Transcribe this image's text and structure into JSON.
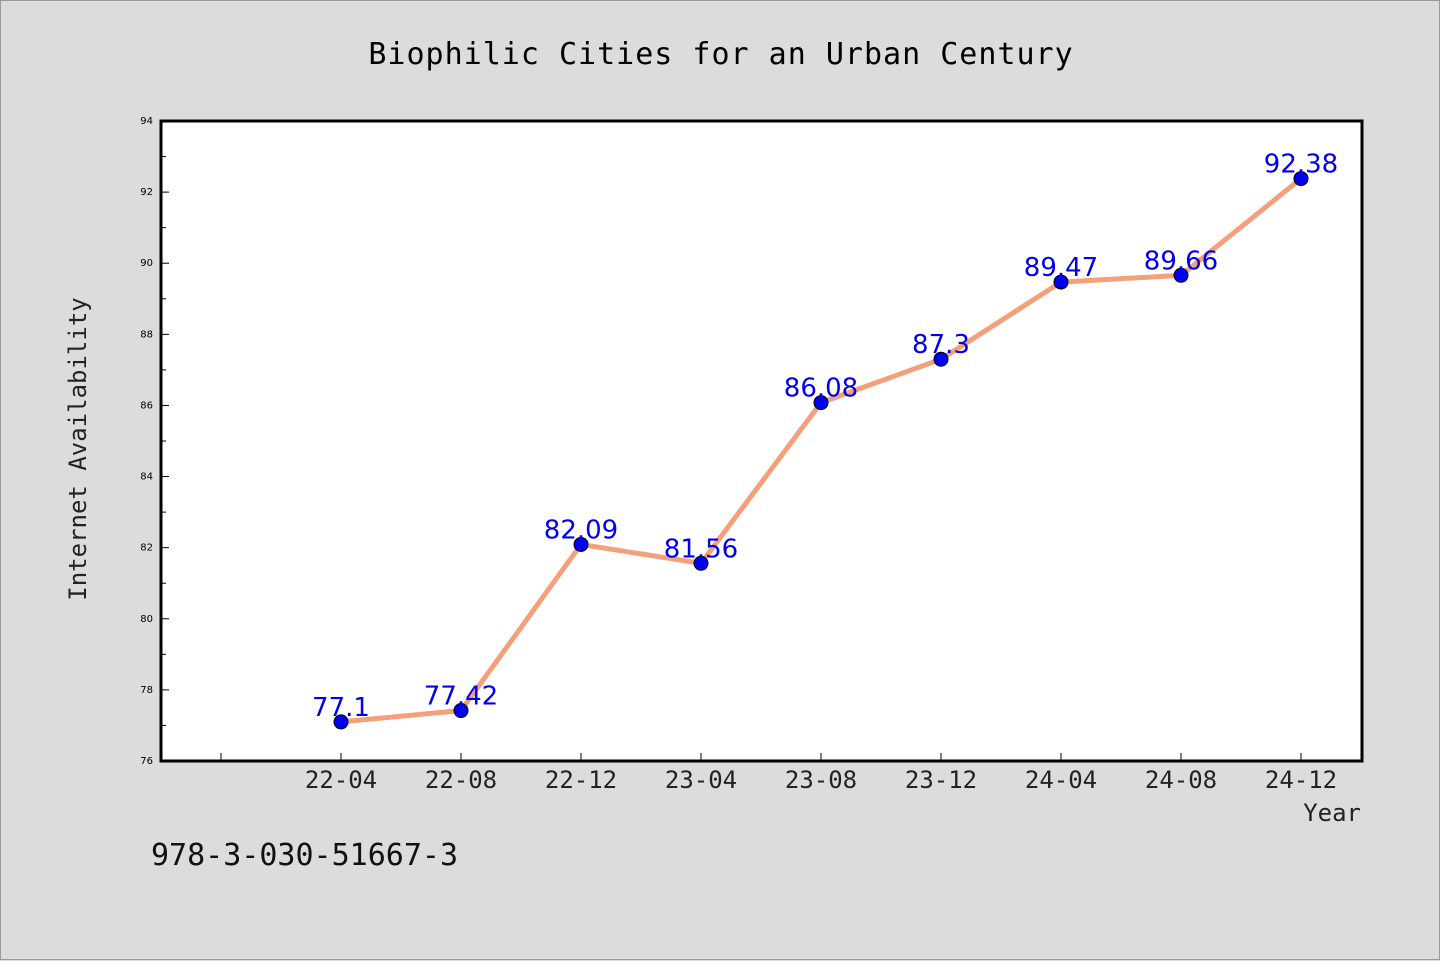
{
  "chart_data": {
    "type": "line",
    "title": "Biophilic Cities for an Urban Century",
    "xlabel": "Year",
    "ylabel": "Internet Availability",
    "categories": [
      "22-04",
      "22-08",
      "22-12",
      "23-04",
      "23-08",
      "23-12",
      "24-04",
      "24-08",
      "24-12"
    ],
    "series": [
      {
        "values": [
          77.1,
          77.42,
          82.09,
          81.56,
          86.08,
          87.3,
          89.47,
          89.66,
          92.38
        ],
        "labels": [
          "77.1",
          "77.42",
          "82.09",
          "81.56",
          "86.08",
          "87.3",
          "89.47",
          "89.66",
          "92.38"
        ]
      }
    ],
    "ylim": [
      76,
      94
    ],
    "yticks": [
      "76",
      "78",
      "80",
      "82",
      "84",
      "86",
      "88",
      "90",
      "92",
      "94"
    ],
    "grid": false,
    "legend": "none",
    "colors": {
      "line": "#f4a07a",
      "marker": "#0000ee",
      "data_label": "#0000ee",
      "background": "#dcdcdc",
      "plot_area": "#ffffff"
    }
  },
  "footnote": "978-3-030-51667-3"
}
